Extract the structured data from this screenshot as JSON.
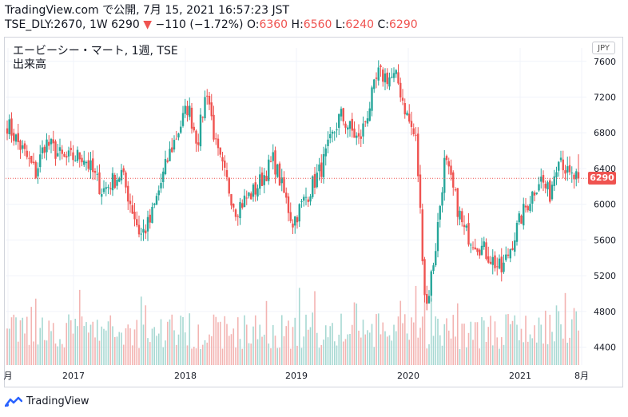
{
  "header": {
    "line1": "TradingView.com で公開, 7月 15, 2021 16:57:23 JST",
    "symbol_info": "TSE_DLY:2670, 1W 6290",
    "change_arrow": "▼",
    "change": "−110 (−1.72%)",
    "o_label": "O:",
    "o_value": "6360",
    "h_label": "H:",
    "h_value": "6560",
    "l_label": "L:",
    "l_value": "6240",
    "c_label": "C:",
    "c_value": "6290"
  },
  "legend": {
    "title": "エービーシー・マート, 1週, TSE",
    "volume_label": "出来高"
  },
  "currency_button": "JPY",
  "last_price_tag": "6290",
  "brand": "TradingView",
  "colors": {
    "up": "#26a69a",
    "down": "#ef5350",
    "vol_up": "#a7d8d2",
    "vol_down": "#f3b4b2"
  },
  "chart_data": {
    "type": "candlestick",
    "interval": "1W",
    "currency": "JPY",
    "y_axis": {
      "side": "right",
      "ticks": [
        4400,
        4800,
        5200,
        5600,
        6000,
        6400,
        6800,
        7200,
        7600
      ],
      "range": [
        4200,
        7750
      ]
    },
    "x_axis": {
      "ticks": [
        "月",
        "2017",
        "2018",
        "2019",
        "2020",
        "2021",
        "8月"
      ]
    },
    "last_price": 6290,
    "last_ohlc": {
      "open": 6360,
      "high": 6560,
      "low": 6240,
      "close": 6290
    },
    "anchors": [
      {
        "date": "2016-07",
        "close": 6900
      },
      {
        "date": "2016-10",
        "close": 6350
      },
      {
        "date": "2016-11",
        "close": 6700
      },
      {
        "date": "2017-01",
        "close": 6500
      },
      {
        "date": "2017-03",
        "close": 6550
      },
      {
        "date": "2017-05",
        "close": 6150
      },
      {
        "date": "2017-07",
        "close": 6350
      },
      {
        "date": "2017-09",
        "close": 5650
      },
      {
        "date": "2017-10",
        "close": 5800
      },
      {
        "date": "2017-12",
        "close": 6550
      },
      {
        "date": "2018-02",
        "close": 7100
      },
      {
        "date": "2018-03",
        "close": 6700
      },
      {
        "date": "2018-04",
        "close": 7300
      },
      {
        "date": "2018-05",
        "close": 6600
      },
      {
        "date": "2018-07",
        "close": 5950
      },
      {
        "date": "2018-09",
        "close": 6150
      },
      {
        "date": "2018-11",
        "close": 6500
      },
      {
        "date": "2019-01",
        "close": 5800
      },
      {
        "date": "2019-04",
        "close": 6400
      },
      {
        "date": "2019-06",
        "close": 7000
      },
      {
        "date": "2019-08",
        "close": 6700
      },
      {
        "date": "2019-10",
        "close": 7450
      },
      {
        "date": "2019-12",
        "close": 7400
      },
      {
        "date": "2020-01",
        "close": 7000
      },
      {
        "date": "2020-02",
        "close": 6700
      },
      {
        "date": "2020-03",
        "close": 4800
      },
      {
        "date": "2020-04",
        "close": 5500
      },
      {
        "date": "2020-05",
        "close": 6500
      },
      {
        "date": "2020-07",
        "close": 5700
      },
      {
        "date": "2020-09",
        "close": 5500
      },
      {
        "date": "2020-11",
        "close": 5250
      },
      {
        "date": "2021-01",
        "close": 5850
      },
      {
        "date": "2021-03",
        "close": 6300
      },
      {
        "date": "2021-04",
        "close": 6100
      },
      {
        "date": "2021-05",
        "close": 6600
      },
      {
        "date": "2021-06",
        "close": 6300
      },
      {
        "date": "2021-07",
        "close": 6290
      }
    ]
  }
}
